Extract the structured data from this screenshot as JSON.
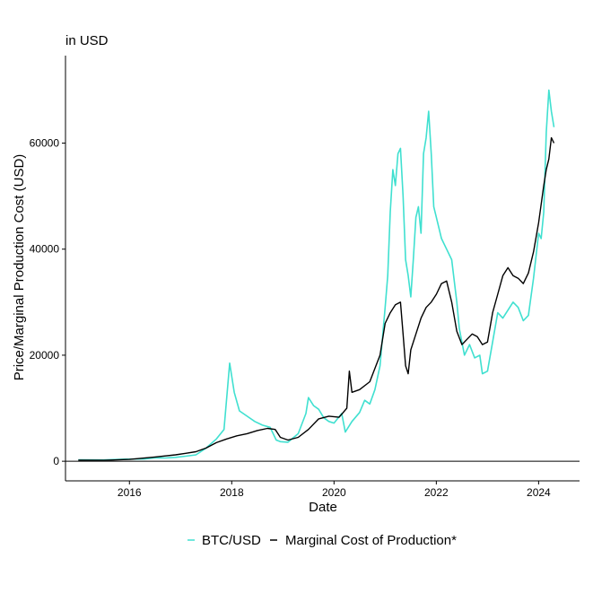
{
  "chart_data": {
    "type": "line",
    "subtitle": "in USD",
    "xlabel": "Date",
    "ylabel": "Price/Marginal Production Cost (USD)",
    "x_tick_labels": [
      "2016",
      "2018",
      "2020",
      "2022",
      "2024"
    ],
    "y_tick_labels": [
      "0",
      "20000",
      "40000",
      "60000"
    ],
    "xlim": [
      2014.75,
      2024.8
    ],
    "ylim": [
      -3700,
      76500
    ],
    "legend_position": "bottom",
    "grid": false,
    "series": [
      {
        "name": "BTC/USD",
        "color": "#40E0D0",
        "x": [
          2015.0,
          2015.5,
          2015.9,
          2016.3,
          2016.5,
          2016.7,
          2016.9,
          2017.1,
          2017.3,
          2017.5,
          2017.7,
          2017.85,
          2017.96,
          2018.05,
          2018.15,
          2018.3,
          2018.45,
          2018.6,
          2018.75,
          2018.87,
          2018.95,
          2019.1,
          2019.3,
          2019.45,
          2019.5,
          2019.6,
          2019.7,
          2019.8,
          2019.9,
          2020.0,
          2020.15,
          2020.22,
          2020.35,
          2020.5,
          2020.6,
          2020.7,
          2020.8,
          2020.9,
          2021.0,
          2021.05,
          2021.1,
          2021.15,
          2021.2,
          2021.25,
          2021.3,
          2021.35,
          2021.4,
          2021.45,
          2021.5,
          2021.55,
          2021.6,
          2021.65,
          2021.7,
          2021.75,
          2021.8,
          2021.85,
          2021.9,
          2021.95,
          2022.0,
          2022.1,
          2022.2,
          2022.3,
          2022.4,
          2022.45,
          2022.55,
          2022.65,
          2022.75,
          2022.85,
          2022.9,
          2023.0,
          2023.1,
          2023.2,
          2023.3,
          2023.4,
          2023.5,
          2023.6,
          2023.7,
          2023.8,
          2023.9,
          2024.0,
          2024.05,
          2024.1,
          2024.15,
          2024.2,
          2024.25,
          2024.3
        ],
        "values": [
          270,
          250,
          400,
          420,
          650,
          620,
          740,
          950,
          1200,
          2500,
          4200,
          6000,
          18500,
          13000,
          9500,
          8500,
          7500,
          6800,
          6400,
          4000,
          3700,
          3600,
          5200,
          9000,
          12000,
          10500,
          9800,
          8200,
          7500,
          7200,
          9000,
          5500,
          7500,
          9200,
          11500,
          10800,
          13500,
          18000,
          29000,
          35000,
          47000,
          55000,
          52000,
          58000,
          59000,
          50000,
          38000,
          35000,
          31000,
          38000,
          46000,
          48000,
          43000,
          58000,
          61000,
          66000,
          58000,
          48000,
          46000,
          42000,
          40000,
          38000,
          30000,
          25000,
          20000,
          22000,
          19500,
          20000,
          16500,
          17000,
          22500,
          28000,
          27000,
          28500,
          30000,
          29000,
          26500,
          27500,
          34500,
          43000,
          42000,
          47000,
          62000,
          70000,
          66000,
          63000
        ]
      },
      {
        "name": "Marginal Cost of Production*",
        "color": "#000000",
        "x": [
          2015.0,
          2015.5,
          2016.0,
          2016.5,
          2016.9,
          2017.1,
          2017.3,
          2017.5,
          2017.7,
          2017.9,
          2018.1,
          2018.3,
          2018.5,
          2018.7,
          2018.85,
          2018.95,
          2019.1,
          2019.3,
          2019.5,
          2019.7,
          2019.9,
          2020.1,
          2020.25,
          2020.3,
          2020.35,
          2020.5,
          2020.7,
          2020.9,
          2021.0,
          2021.1,
          2021.2,
          2021.3,
          2021.35,
          2021.4,
          2021.45,
          2021.5,
          2021.6,
          2021.7,
          2021.8,
          2021.9,
          2022.0,
          2022.1,
          2022.2,
          2022.3,
          2022.4,
          2022.5,
          2022.6,
          2022.7,
          2022.8,
          2022.9,
          2023.0,
          2023.1,
          2023.2,
          2023.3,
          2023.4,
          2023.5,
          2023.6,
          2023.7,
          2023.8,
          2023.9,
          2024.0,
          2024.1,
          2024.15,
          2024.2,
          2024.25,
          2024.3
        ],
        "values": [
          200,
          180,
          350,
          800,
          1200,
          1500,
          1800,
          2500,
          3500,
          4200,
          4800,
          5200,
          5800,
          6200,
          6000,
          4500,
          4000,
          4500,
          6000,
          8000,
          8500,
          8300,
          10000,
          17000,
          13000,
          13500,
          15000,
          20000,
          26000,
          28000,
          29500,
          30000,
          24000,
          18000,
          16500,
          21000,
          24000,
          27000,
          29000,
          30000,
          31500,
          33500,
          34000,
          30000,
          24500,
          22000,
          23000,
          24000,
          23500,
          22000,
          22500,
          28000,
          31500,
          35000,
          36500,
          35000,
          34500,
          33500,
          35500,
          39500,
          45000,
          52000,
          55000,
          57000,
          61000,
          60000
        ]
      }
    ]
  }
}
